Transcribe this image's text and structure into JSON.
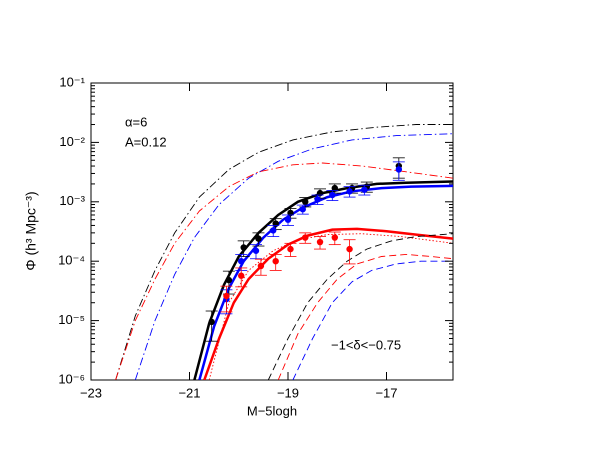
{
  "chart_data": {
    "type": "scatter",
    "x_label": "M−5logh",
    "y_label": "Φ (h³ Mpc⁻³)",
    "annotations": [
      "α=6",
      "A=0.12",
      "−1<δ<−0.75"
    ],
    "xlim": [
      -23,
      -15.65
    ],
    "xticks": [
      {
        "value": -23,
        "label": "−23"
      },
      {
        "value": -21,
        "label": "−21"
      },
      {
        "value": -19,
        "label": "−19"
      },
      {
        "value": -17,
        "label": "−17"
      }
    ],
    "ylim": [
      1e-06,
      0.1
    ],
    "log_y": true,
    "yticks": [
      {
        "value": 1e-06,
        "label": "10⁻⁶"
      },
      {
        "value": 1e-05,
        "label": "10⁻⁵"
      },
      {
        "value": 0.0001,
        "label": "10⁻⁴"
      },
      {
        "value": 0.001,
        "label": "10⁻³"
      },
      {
        "value": 0.01,
        "label": "10⁻²"
      },
      {
        "value": 0.1,
        "label": "10⁻¹"
      }
    ],
    "points": [
      {
        "color": "#000000",
        "x": [
          -20.55,
          -20.2,
          -19.9,
          -19.6,
          -19.25,
          -18.95,
          -18.65,
          -18.35,
          -18.05,
          -17.7,
          -17.4,
          -16.75
        ],
        "values": [
          9.5e-06,
          4.8e-05,
          0.00017,
          0.00024,
          0.00043,
          0.00065,
          0.001,
          0.0014,
          0.0017,
          0.0017,
          0.0018,
          0.004
        ],
        "errors": [
          5e-06,
          2e-05,
          5e-05,
          6e-05,
          9e-05,
          0.00012,
          0.00018,
          0.00025,
          0.0003,
          0.0003,
          0.00035,
          0.0015
        ]
      },
      {
        "color": "#0000ff",
        "x": [
          -20.25,
          -19.95,
          -19.65,
          -19.3,
          -19.0,
          -18.7,
          -18.4,
          -18.1,
          -17.75,
          -17.45,
          -16.75
        ],
        "values": [
          2.3e-05,
          0.0001,
          0.00015,
          0.00033,
          0.0005,
          0.00075,
          0.0011,
          0.0013,
          0.0015,
          0.0016,
          0.0035
        ],
        "errors": [
          1e-05,
          3e-05,
          4e-05,
          7e-05,
          0.0001,
          0.00013,
          0.0002,
          0.00025,
          0.0003,
          0.0003,
          0.0012
        ]
      },
      {
        "color": "#ff0000",
        "x": [
          -20.25,
          -19.95,
          -19.55,
          -19.25,
          -18.95,
          -18.65,
          -18.35,
          -18.05,
          -17.75
        ],
        "values": [
          2.6e-05,
          5.7e-05,
          8.3e-05,
          0.0001,
          0.00016,
          0.00025,
          0.00021,
          0.00025,
          0.00016
        ],
        "errors": [
          1.2e-05,
          2e-05,
          2.5e-05,
          3e-05,
          4e-05,
          5e-05,
          5e-05,
          6e-05,
          7e-05
        ]
      }
    ],
    "series": [
      {
        "color": "#000000",
        "style": "solid",
        "x": [
          -20.9,
          -20.6,
          -20.3,
          -20.0,
          -19.6,
          -19.2,
          -18.8,
          -18.3,
          -17.8,
          -17.2,
          -16.6,
          -15.65
        ],
        "values": [
          1e-06,
          9e-06,
          4e-05,
          0.00012,
          0.0003,
          0.0006,
          0.001,
          0.0014,
          0.0017,
          0.002,
          0.0021,
          0.0022
        ]
      },
      {
        "color": "#0000ff",
        "style": "solid",
        "x": [
          -20.8,
          -20.5,
          -20.2,
          -19.9,
          -19.5,
          -19.1,
          -18.7,
          -18.2,
          -17.7,
          -17.1,
          -16.5,
          -15.65
        ],
        "values": [
          1e-06,
          8e-06,
          3.5e-05,
          0.0001,
          0.00025,
          0.0005,
          0.0008,
          0.0012,
          0.0015,
          0.0017,
          0.0018,
          0.00185
        ]
      },
      {
        "color": "#ff0000",
        "style": "solid",
        "x": [
          -20.7,
          -20.4,
          -20.1,
          -19.8,
          -19.4,
          -19.0,
          -18.6,
          -18.1,
          -17.6,
          -17.0,
          -16.4,
          -15.65
        ],
        "values": [
          1e-06,
          5e-06,
          2e-05,
          5e-05,
          0.00011,
          0.00019,
          0.00027,
          0.00034,
          0.00035,
          0.00032,
          0.00028,
          0.00024
        ]
      },
      {
        "color": "#ff0000",
        "style": "dotted",
        "x": [
          -20.6,
          -20.2,
          -19.8,
          -19.3,
          -18.8,
          -18.2,
          -17.5,
          -16.7,
          -15.65
        ],
        "values": [
          1e-06,
          2e-05,
          7e-05,
          0.00015,
          0.00023,
          0.00028,
          0.00029,
          0.00026,
          0.0002
        ]
      },
      {
        "color": "#000000",
        "style": "dashed",
        "x": [
          -19.4,
          -19.0,
          -18.6,
          -18.2,
          -17.8,
          -17.4,
          -16.9,
          -16.4,
          -15.65
        ],
        "values": [
          1e-06,
          5e-06,
          2e-05,
          5e-05,
          0.0001,
          0.00016,
          0.00022,
          0.00026,
          0.00029
        ]
      },
      {
        "color": "#ff0000",
        "style": "dashed",
        "x": [
          -19.2,
          -18.8,
          -18.4,
          -18.0,
          -17.6,
          -17.1,
          -16.6,
          -16.1,
          -15.65
        ],
        "values": [
          1e-06,
          6e-06,
          2e-05,
          5e-05,
          9e-05,
          0.00012,
          0.00013,
          0.00012,
          0.00011
        ]
      },
      {
        "color": "#0000ff",
        "style": "dashed",
        "x": [
          -18.9,
          -18.5,
          -18.1,
          -17.7,
          -17.3,
          -16.8,
          -16.3,
          -15.65
        ],
        "values": [
          1e-06,
          5e-06,
          2e-05,
          4.5e-05,
          7e-05,
          9e-05,
          0.0001,
          0.0001
        ]
      },
      {
        "color": "#000000",
        "style": "dashdot",
        "x": [
          -22.5,
          -22.1,
          -21.7,
          -21.3,
          -20.8,
          -20.2,
          -19.6,
          -18.9,
          -18.1,
          -17.2,
          -16.4,
          -15.65
        ],
        "values": [
          1e-06,
          1.2e-05,
          7e-05,
          0.0003,
          0.0012,
          0.0035,
          0.0068,
          0.011,
          0.015,
          0.018,
          0.02,
          0.02
        ]
      },
      {
        "color": "#0000ff",
        "style": "dashdot",
        "x": [
          -22.1,
          -21.7,
          -21.3,
          -20.9,
          -20.4,
          -19.8,
          -19.2,
          -18.5,
          -17.7,
          -16.8,
          -15.65
        ],
        "values": [
          1e-06,
          1e-05,
          6e-05,
          0.00025,
          0.0009,
          0.0025,
          0.0048,
          0.0078,
          0.011,
          0.013,
          0.014
        ]
      },
      {
        "color": "#ff0000",
        "style": "dashdot",
        "x": [
          -22.5,
          -22.1,
          -21.7,
          -21.3,
          -20.8,
          -20.2,
          -19.6,
          -18.9,
          -18.3,
          -17.5,
          -16.6,
          -15.65
        ],
        "values": [
          1e-06,
          1e-05,
          5e-05,
          0.0002,
          0.0007,
          0.0018,
          0.0032,
          0.0042,
          0.0045,
          0.004,
          0.0032,
          0.0025
        ]
      }
    ]
  }
}
